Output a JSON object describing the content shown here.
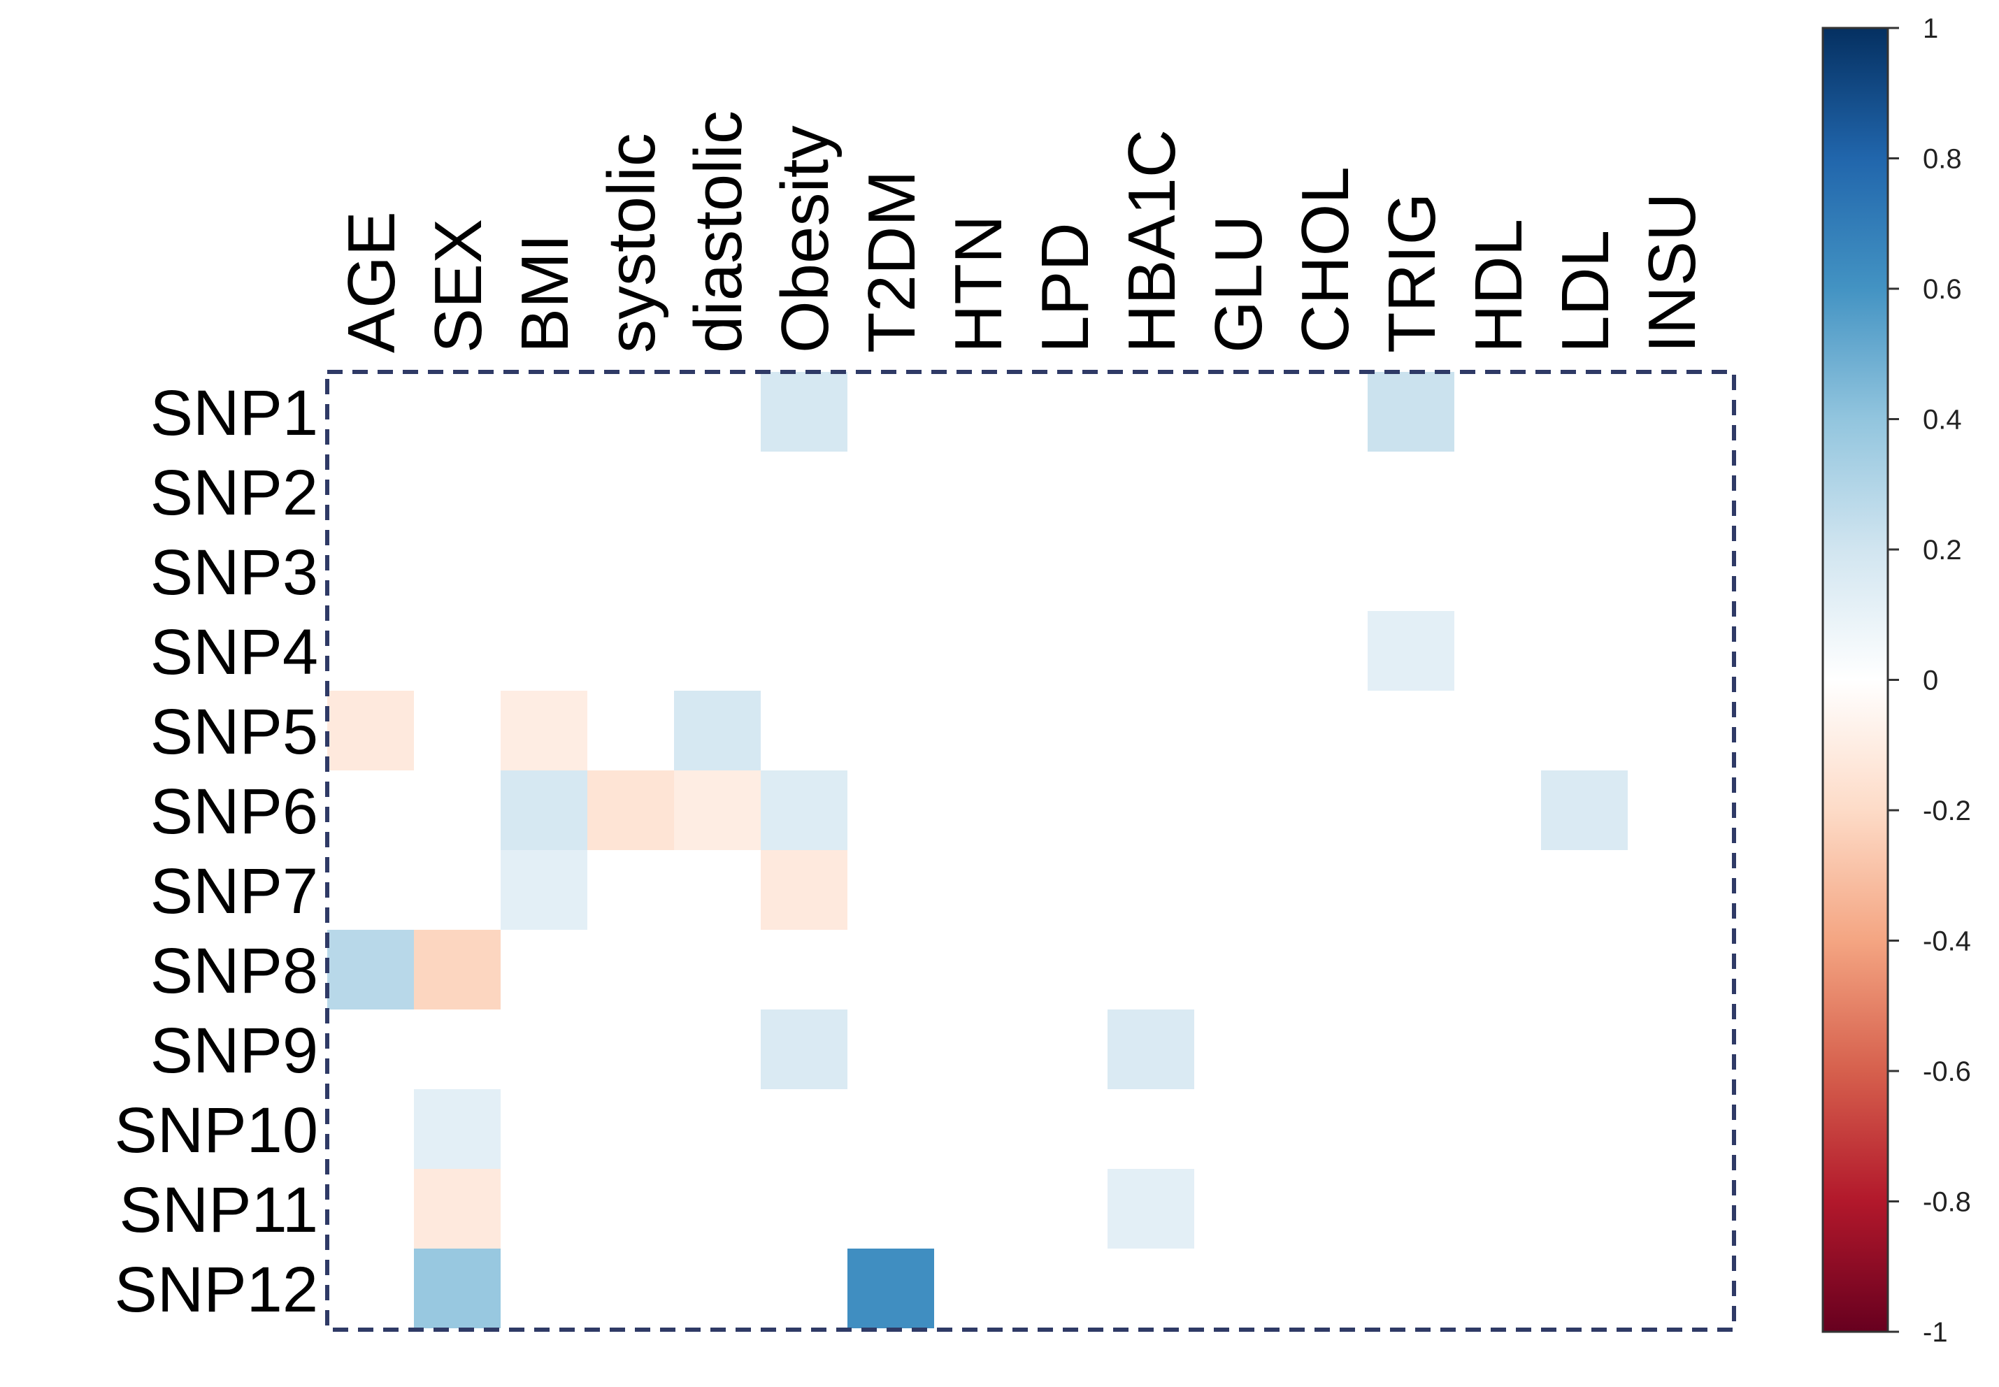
{
  "chart_data": {
    "type": "heatmap",
    "title": "",
    "xlabel": "",
    "ylabel": "",
    "columns": [
      "AGE",
      "SEX",
      "BMI",
      "systolic",
      "diastolic",
      "Obesity",
      "T2DM",
      "HTN",
      "LPD",
      "HBA1C",
      "GLU",
      "CHOL",
      "TRIG",
      "HDL",
      "LDL",
      "INSU"
    ],
    "rows": [
      "SNP1",
      "SNP2",
      "SNP3",
      "SNP4",
      "SNP5",
      "SNP6",
      "SNP7",
      "SNP8",
      "SNP9",
      "SNP10",
      "SNP11",
      "SNP12"
    ],
    "values": [
      [
        0,
        0,
        0,
        0,
        0,
        0.18,
        0,
        0,
        0,
        0,
        0,
        0,
        0.22,
        0,
        0,
        0
      ],
      [
        0,
        0,
        0,
        0,
        0,
        0,
        0,
        0,
        0,
        0,
        0,
        0,
        0,
        0,
        0,
        0
      ],
      [
        0,
        0,
        0,
        0,
        0,
        0,
        0,
        0,
        0,
        0,
        0,
        0,
        0,
        0,
        0,
        0
      ],
      [
        0,
        0,
        0,
        0,
        0,
        0,
        0,
        0,
        0,
        0,
        0,
        0,
        0.12,
        0,
        0,
        0
      ],
      [
        -0.12,
        0,
        -0.1,
        0,
        0.18,
        0,
        0,
        0,
        0,
        0,
        0,
        0,
        0,
        0,
        0,
        0
      ],
      [
        0,
        0,
        0.18,
        -0.15,
        -0.1,
        0.15,
        0,
        0,
        0,
        0,
        0,
        0,
        0,
        0,
        0.16,
        0
      ],
      [
        0,
        0,
        0.12,
        0,
        0,
        -0.12,
        0,
        0,
        0,
        0,
        0,
        0,
        0,
        0,
        0,
        0
      ],
      [
        0.28,
        -0.22,
        0,
        0,
        0,
        0,
        0,
        0,
        0,
        0,
        0,
        0,
        0,
        0,
        0,
        0
      ],
      [
        0,
        0,
        0,
        0,
        0,
        0.16,
        0,
        0,
        0,
        0.16,
        0,
        0,
        0,
        0,
        0,
        0
      ],
      [
        0,
        0.12,
        0,
        0,
        0,
        0,
        0,
        0,
        0,
        0,
        0,
        0,
        0,
        0,
        0,
        0
      ],
      [
        0,
        -0.12,
        0,
        0,
        0,
        0,
        0,
        0,
        0,
        0.12,
        0,
        0,
        0,
        0,
        0,
        0
      ],
      [
        0,
        0.38,
        0,
        0,
        0,
        0,
        0.62,
        0,
        0,
        0,
        0,
        0,
        0,
        0,
        0,
        0
      ]
    ],
    "colorbar": {
      "range": [
        -1,
        1
      ],
      "ticks": [
        "1",
        "0.8",
        "0.6",
        "0.4",
        "0.2",
        "0",
        "-0.2",
        "-0.4",
        "-0.6",
        "-0.8",
        "-1"
      ],
      "colors": [
        "#67001F",
        "#B2182B",
        "#D6604D",
        "#F4A582",
        "#FDDBC7",
        "#FFFFFF",
        "#D1E5F0",
        "#92C5DE",
        "#4393C3",
        "#2166AC",
        "#053061"
      ]
    },
    "legend": "right",
    "grid": false,
    "border": "dashed",
    "border_color": "#2F3A66"
  }
}
